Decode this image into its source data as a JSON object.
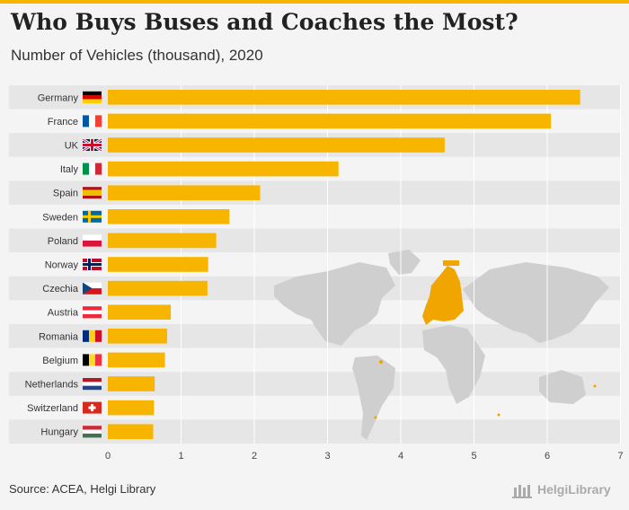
{
  "header": {
    "title": "Who Buys Buses and Coaches the Most?",
    "subtitle": "Number of Vehicles (thousand), 2020"
  },
  "footer": {
    "source": "Source: ACEA, Helgi Library",
    "brand": "HelgiLibrary"
  },
  "colors": {
    "bar": "#f7b500",
    "accent": "#f7b500",
    "map_land": "#cfcfcf",
    "map_highlight": "#f0a500"
  },
  "chart_data": {
    "type": "bar",
    "orientation": "horizontal",
    "categories": [
      "Germany",
      "France",
      "UK",
      "Italy",
      "Spain",
      "Sweden",
      "Poland",
      "Norway",
      "Czechia",
      "Austria",
      "Romania",
      "Belgium",
      "Netherlands",
      "Switzerland",
      "Hungary"
    ],
    "values": [
      6.45,
      6.05,
      4.6,
      3.15,
      2.08,
      1.66,
      1.48,
      1.37,
      1.36,
      0.86,
      0.81,
      0.78,
      0.64,
      0.63,
      0.62
    ],
    "xlim": [
      0,
      7
    ],
    "xticks": [
      "0",
      "1",
      "2",
      "3",
      "4",
      "5",
      "6",
      "7"
    ],
    "grid": true,
    "legend": "none"
  }
}
